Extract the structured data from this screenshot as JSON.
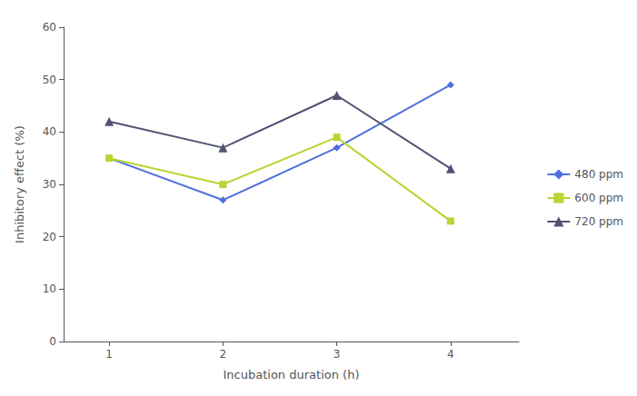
{
  "chart_data": {
    "type": "line",
    "xlabel": "Incubation duration (h)",
    "ylabel": "Inhibitory effect (%)",
    "x": [
      1,
      2,
      3,
      4
    ],
    "series": [
      {
        "name": "480 ppm",
        "values": [
          35,
          27,
          37,
          49
        ],
        "marker": "diamond"
      },
      {
        "name": "600 ppm",
        "values": [
          35,
          30,
          39,
          23
        ],
        "marker": "square"
      },
      {
        "name": "720 ppm",
        "values": [
          42,
          37,
          47,
          33
        ],
        "marker": "triangle"
      }
    ],
    "xlim": [
      0.6,
      4.6
    ],
    "ylim": [
      0,
      60
    ],
    "xticks": [
      1,
      2,
      3,
      4
    ],
    "yticks": [
      0,
      10,
      20,
      30,
      40,
      50,
      60
    ],
    "grid": false,
    "legend": "right"
  }
}
